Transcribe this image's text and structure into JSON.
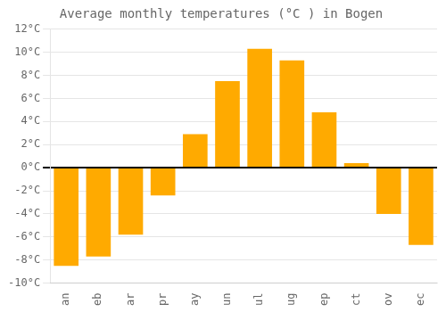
{
  "chart_data": {
    "type": "bar",
    "title": "Average monthly temperatures (°C ) in Bogen",
    "categories": [
      "an",
      "eb",
      "ar",
      "pr",
      "ay",
      "un",
      "ul",
      "ug",
      "ep",
      "ct",
      "ov",
      "ec"
    ],
    "values": [
      -8.5,
      -7.7,
      -5.8,
      -2.4,
      2.9,
      7.5,
      10.3,
      9.3,
      4.8,
      0.4,
      -4.0,
      -6.7
    ],
    "color": "#FFAA00",
    "ylim": [
      -10,
      12
    ],
    "yticks": [
      {
        "value": -10,
        "label": "-10°C"
      },
      {
        "value": -8,
        "label": "-8°C"
      },
      {
        "value": -6,
        "label": "-6°C"
      },
      {
        "value": -4,
        "label": "-4°C"
      },
      {
        "value": -2,
        "label": "-2°C"
      },
      {
        "value": 0,
        "label": "0°C"
      },
      {
        "value": 2,
        "label": "2°C"
      },
      {
        "value": 4,
        "label": "4°C"
      },
      {
        "value": 6,
        "label": "6°C"
      },
      {
        "value": 8,
        "label": "8°C"
      },
      {
        "value": 10,
        "label": "10°C"
      },
      {
        "value": 12,
        "label": "12°C"
      }
    ],
    "grid": true
  }
}
